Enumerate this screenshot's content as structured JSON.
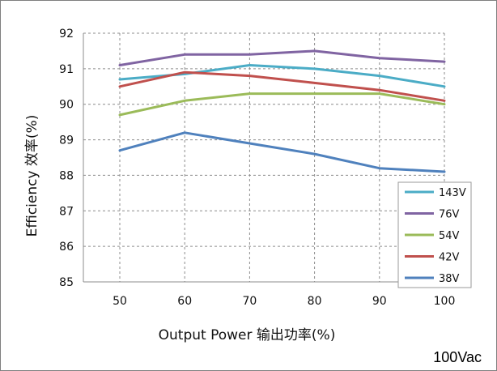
{
  "chart_data": {
    "type": "line",
    "xlabel": "Output Power 输出功率(%)",
    "ylabel": "Efficiency 效率(%)",
    "x": [
      50,
      60,
      70,
      80,
      90,
      100
    ],
    "xlim": [
      50,
      100
    ],
    "ylim": [
      85,
      92
    ],
    "xticks": [
      "50",
      "60",
      "70",
      "80",
      "90",
      "100"
    ],
    "yticks": [
      "85",
      "86",
      "87",
      "88",
      "89",
      "90",
      "91",
      "92"
    ],
    "grid": true,
    "legend_position": "bottom-right",
    "footnote": "100Vac",
    "series": [
      {
        "name": "143V",
        "color": "#4bacc6",
        "values": [
          90.7,
          90.85,
          91.1,
          91.0,
          90.8,
          90.5
        ]
      },
      {
        "name": "76V",
        "color": "#8064a2",
        "values": [
          91.1,
          91.4,
          91.4,
          91.5,
          91.3,
          91.2
        ]
      },
      {
        "name": "54V",
        "color": "#9bbb59",
        "values": [
          89.7,
          90.1,
          90.3,
          90.3,
          90.3,
          90.0
        ]
      },
      {
        "name": "42V",
        "color": "#c0504d",
        "values": [
          90.5,
          90.9,
          90.8,
          90.6,
          90.4,
          90.1
        ]
      },
      {
        "name": "38V",
        "color": "#4f81bd",
        "values": [
          88.7,
          89.2,
          88.9,
          88.6,
          88.2,
          88.1
        ]
      }
    ]
  }
}
